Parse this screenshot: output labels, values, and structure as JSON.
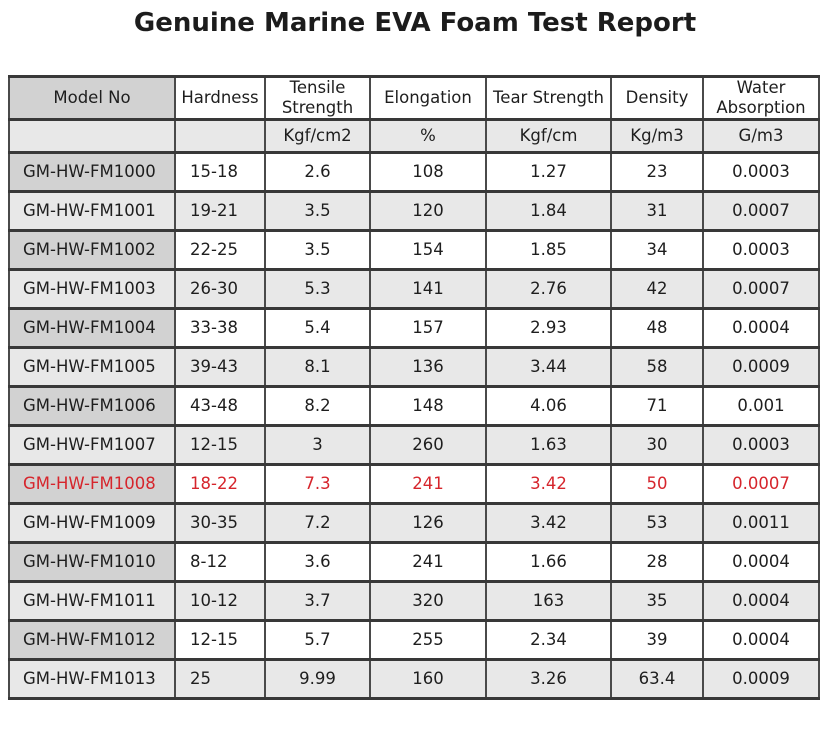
{
  "title": "Genuine Marine EVA Foam Test Report",
  "colors": {
    "highlight_red": "#d6252c",
    "model_cell_gray": "#d2d2d2",
    "stripe_gray": "#e8e8e8",
    "border_dark": "#383838"
  },
  "table": {
    "columns": [
      {
        "key": "model",
        "label": "Model No",
        "unit": ""
      },
      {
        "key": "hardness",
        "label": "Hardness",
        "unit": ""
      },
      {
        "key": "tensile-strength",
        "label": "Tensile Strength",
        "unit": "Kgf/cm2"
      },
      {
        "key": "elongation",
        "label": "Elongation",
        "unit": "%"
      },
      {
        "key": "tear-strength",
        "label": "Tear Strength",
        "unit": "Kgf/cm"
      },
      {
        "key": "density",
        "label": "Density",
        "unit": "Kg/m3"
      },
      {
        "key": "water-absorption",
        "label": "Water Absorption",
        "unit": "G/m3"
      }
    ],
    "rows": [
      {
        "highlight": false,
        "cells": [
          "GM-HW-FM1000",
          "15-18",
          "2.6",
          "108",
          "1.27",
          "23",
          "0.0003"
        ]
      },
      {
        "highlight": false,
        "cells": [
          "GM-HW-FM1001",
          "19-21",
          "3.5",
          "120",
          "1.84",
          "31",
          "0.0007"
        ]
      },
      {
        "highlight": false,
        "cells": [
          "GM-HW-FM1002",
          "22-25",
          "3.5",
          "154",
          "1.85",
          "34",
          "0.0003"
        ]
      },
      {
        "highlight": false,
        "cells": [
          "GM-HW-FM1003",
          "26-30",
          "5.3",
          "141",
          "2.76",
          "42",
          "0.0007"
        ]
      },
      {
        "highlight": false,
        "cells": [
          "GM-HW-FM1004",
          "33-38",
          "5.4",
          "157",
          "2.93",
          "48",
          "0.0004"
        ]
      },
      {
        "highlight": false,
        "cells": [
          "GM-HW-FM1005",
          "39-43",
          "8.1",
          "136",
          "3.44",
          "58",
          "0.0009"
        ]
      },
      {
        "highlight": false,
        "cells": [
          "GM-HW-FM1006",
          "43-48",
          "8.2",
          "148",
          "4.06",
          "71",
          "0.001"
        ]
      },
      {
        "highlight": false,
        "cells": [
          "GM-HW-FM1007",
          "12-15",
          "3",
          "260",
          "1.63",
          "30",
          "0.0003"
        ]
      },
      {
        "highlight": true,
        "cells": [
          "GM-HW-FM1008",
          "18-22",
          "7.3",
          "241",
          "3.42",
          "50",
          "0.0007"
        ]
      },
      {
        "highlight": false,
        "cells": [
          "GM-HW-FM1009",
          "30-35",
          "7.2",
          "126",
          "3.42",
          "53",
          "0.0011"
        ]
      },
      {
        "highlight": false,
        "cells": [
          "GM-HW-FM1010",
          "8-12",
          "3.6",
          "241",
          "1.66",
          "28",
          "0.0004"
        ]
      },
      {
        "highlight": false,
        "cells": [
          "GM-HW-FM1011",
          "10-12",
          "3.7",
          "320",
          "163",
          "35",
          "0.0004"
        ]
      },
      {
        "highlight": false,
        "cells": [
          "GM-HW-FM1012",
          "12-15",
          "5.7",
          "255",
          "2.34",
          "39",
          "0.0004"
        ]
      },
      {
        "highlight": false,
        "cells": [
          "GM-HW-FM1013",
          "25",
          "9.99",
          "160",
          "3.26",
          "63.4",
          "0.0009"
        ]
      }
    ]
  }
}
